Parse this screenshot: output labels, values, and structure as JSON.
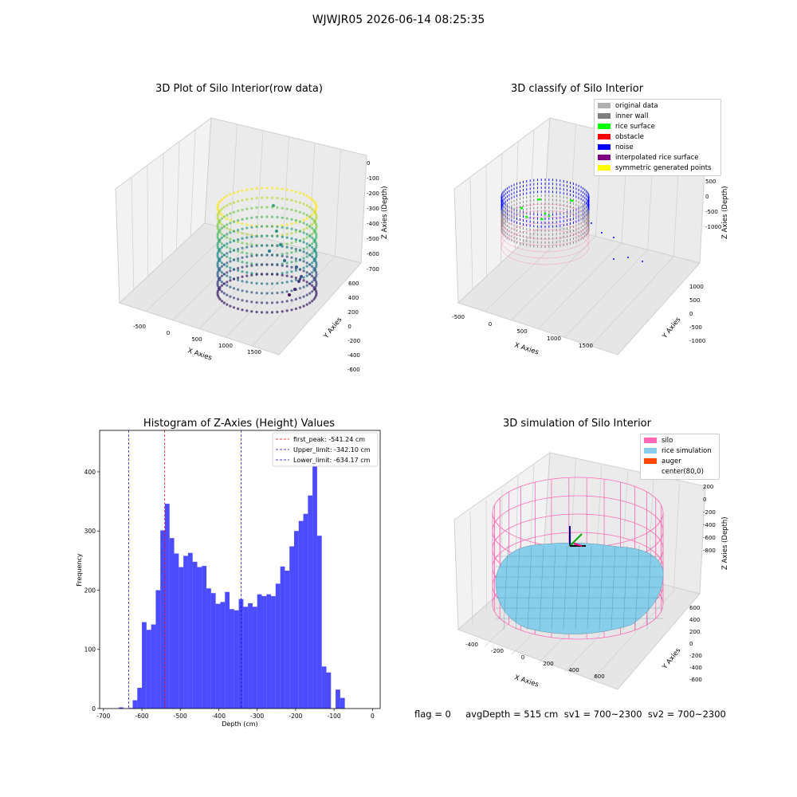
{
  "suptitle": "WJWJR05 2026-06-14 08:25:35",
  "panels": {
    "raw": {
      "title": "3D Plot of Silo Interior(row data)",
      "xlabel": "X Axies",
      "ylabel": "Y Axies",
      "zlabel": "Z Axies (Depth)",
      "xticks": [
        "-500",
        "0",
        "500",
        "1000",
        "1500"
      ],
      "yticks": [
        "600",
        "400",
        "200",
        "0",
        "-200",
        "-400",
        "-600"
      ],
      "zticks": [
        "0",
        "-100",
        "-200",
        "-300",
        "-400",
        "-500",
        "-600",
        "-700"
      ]
    },
    "classify": {
      "title": "3D classify of Silo Interior",
      "xlabel": "X Axies",
      "ylabel": "Y Axies",
      "zlabel": "Z Axies (Depth)",
      "xticks": [
        "-500",
        "0",
        "500",
        "1000",
        "1500"
      ],
      "yticks": [
        "1000",
        "500",
        "0",
        "-500",
        "-1000"
      ],
      "zticks": [
        "500",
        "0",
        "-500",
        "-1000"
      ],
      "legend": [
        {
          "label": "original data",
          "color": "#b0b0b0"
        },
        {
          "label": "inner wall",
          "color": "#808080"
        },
        {
          "label": "rice surface",
          "color": "#00ff00"
        },
        {
          "label": "obstacle",
          "color": "#ff0000"
        },
        {
          "label": "noise",
          "color": "#0000ff"
        },
        {
          "label": "interpolated rice surface",
          "color": "#800080"
        },
        {
          "label": "symmetric generated points",
          "color": "#ffff00"
        }
      ]
    },
    "simulation": {
      "title": "3D simulation of Silo Interior",
      "xlabel": "X Axies",
      "ylabel": "Y Axies",
      "zlabel": "Z Axies (Depth)",
      "xticks": [
        "-400",
        "-200",
        "0",
        "200",
        "400",
        "600"
      ],
      "yticks": [
        "600",
        "400",
        "200",
        "0",
        "-200",
        "-400",
        "-600"
      ],
      "zticks": [
        "200",
        "0",
        "-200",
        "-400",
        "-600",
        "-800"
      ],
      "legend": [
        {
          "label": "silo",
          "color": "#ff69b4"
        },
        {
          "label": "rice simulation",
          "color": "#87ceeb"
        },
        {
          "label": "auger",
          "color": "#ff4500"
        },
        {
          "label": "center(80,0)",
          "color": "#ffffff"
        }
      ]
    }
  },
  "footer": "flag = 0     avgDepth = 515 cm  sv1 = 700~2300  sv2 = 700~2300",
  "chart_data": [
    {
      "type": "bar",
      "title": "Histogram of Z-Axies (Height) Values",
      "xlabel": "Depth (cm)",
      "ylabel": "Frequency",
      "xlim": [
        -710,
        20
      ],
      "ylim": [
        0,
        470
      ],
      "xticks": [
        -700,
        -600,
        -500,
        -400,
        -300,
        -200,
        -100,
        0
      ],
      "yticks": [
        0,
        100,
        200,
        300,
        400
      ],
      "bin_width": 12,
      "bin_start": -660,
      "values": [
        2,
        0,
        1,
        14,
        35,
        146,
        133,
        142,
        200,
        301,
        346,
        288,
        262,
        239,
        258,
        263,
        248,
        239,
        241,
        203,
        195,
        177,
        180,
        197,
        168,
        166,
        185,
        172,
        178,
        172,
        193,
        190,
        193,
        190,
        211,
        240,
        233,
        274,
        300,
        317,
        329,
        360,
        460,
        292,
        71,
        61,
        0,
        32,
        18
      ],
      "bar_color": "#0000ff",
      "vlines": [
        {
          "x": -541.24,
          "color": "#ff0000",
          "label": "first_peak: -541.24 cm"
        },
        {
          "x": -342.1,
          "color": "#0000cc",
          "label": "Upper_limit: -342.10 cm"
        },
        {
          "x": -634.17,
          "color": "#0000cc",
          "label": "Lower_limit: -634.17 cm"
        }
      ],
      "legend_position": "top-right",
      "grid": false
    }
  ]
}
